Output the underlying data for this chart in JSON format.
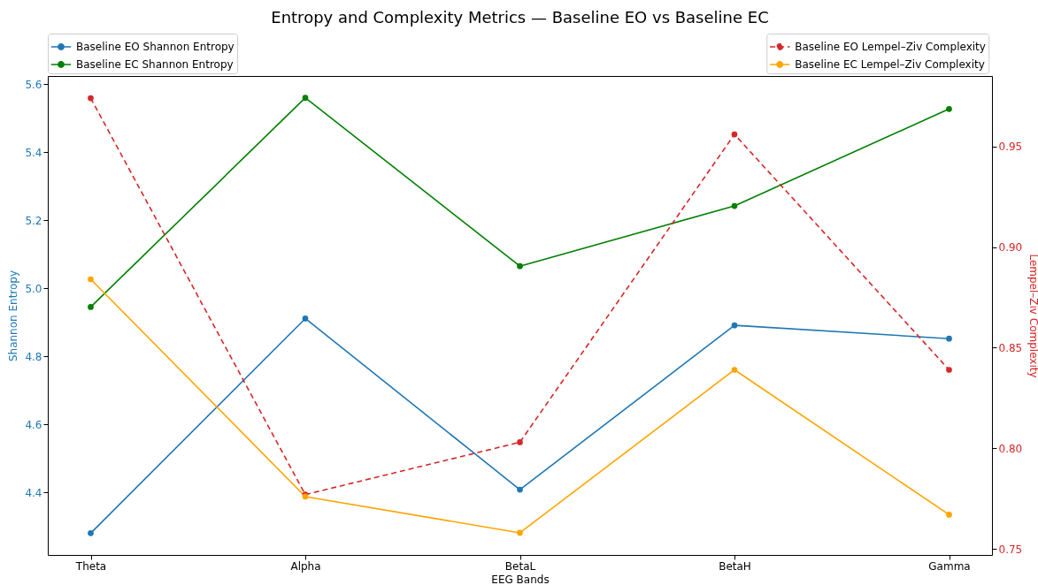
{
  "chart_data": {
    "type": "line",
    "title": "Entropy and Complexity Metrics — Baseline EO vs Baseline EC",
    "xlabel": "EEG Bands",
    "ylabel": "Shannon Entropy",
    "y2label": "Lempel–Ziv Complexity",
    "categories": [
      "Theta",
      "Alpha",
      "BetaL",
      "BetaH",
      "Gamma"
    ],
    "series": [
      {
        "name": "Baseline EO Shannon Entropy",
        "color": "#1f77b4",
        "line_style": "solid",
        "values": [
          4.28,
          4.911,
          4.408,
          4.891,
          4.852
        ]
      },
      {
        "name": "Baseline EC Shannon Entropy",
        "color": "#008000",
        "line_style": "solid",
        "values": [
          4.945,
          5.56,
          5.065,
          5.242,
          5.527
        ]
      },
      {
        "name": "Baseline EO Lempel–Ziv Complexity",
        "color": "#d62728",
        "line_style": "dashed",
        "axis": "y2",
        "values": [
          0.974,
          0.777,
          0.803,
          0.956,
          0.839
        ]
      },
      {
        "name": "Baseline EC Lempel–Ziv Complexity",
        "color": "#ffa500",
        "line_style": "solid",
        "axis": "y2",
        "values": [
          0.884,
          0.776,
          0.758,
          0.839,
          0.767
        ]
      }
    ],
    "ylim": [
      4.216,
      5.624
    ],
    "yticks": [
      4.4,
      4.6,
      4.8,
      {
        "value": 5,
        "label": "5.0"
      },
      5.2,
      5.4,
      5.6
    ],
    "y2lim": [
      0.747,
      0.985
    ],
    "y2ticks": [
      0.75,
      {
        "value": 0.8,
        "label": "0.80"
      },
      0.85,
      {
        "value": 0.9,
        "label": "0.90"
      },
      0.95
    ],
    "marker": "circle",
    "grid": false,
    "legend": [
      "top left",
      "top right"
    ]
  }
}
